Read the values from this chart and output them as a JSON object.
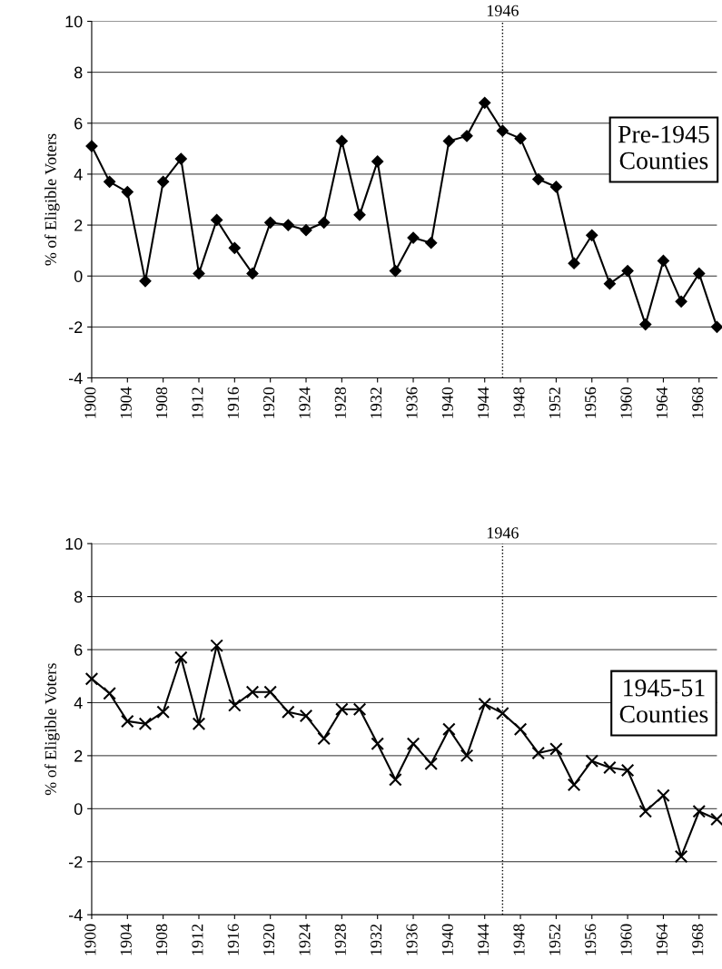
{
  "chart_data": [
    {
      "type": "line",
      "ylabel": "% of Eligible Voters",
      "x": [
        1900,
        1902,
        1904,
        1906,
        1908,
        1910,
        1912,
        1914,
        1916,
        1918,
        1920,
        1922,
        1924,
        1926,
        1928,
        1930,
        1932,
        1934,
        1936,
        1938,
        1940,
        1942,
        1944,
        1946,
        1948,
        1950,
        1952,
        1954,
        1956,
        1958,
        1960,
        1962,
        1964,
        1966,
        1968,
        1970
      ],
      "series": [
        {
          "color": "#000000",
          "values": [
            5.1,
            3.7,
            3.3,
            -0.2,
            3.7,
            4.6,
            0.1,
            2.2,
            1.1,
            0.1,
            2.1,
            2.0,
            1.8,
            2.1,
            5.3,
            2.4,
            4.5,
            0.2,
            1.5,
            1.3,
            5.3,
            5.5,
            6.8,
            5.7,
            5.4,
            3.8,
            3.5,
            0.5,
            1.6,
            -0.3,
            0.2,
            -1.9,
            0.6,
            -1.0,
            0.1,
            -2.0
          ]
        }
      ],
      "xlim": [
        1900,
        1970
      ],
      "xticks": [
        1900,
        1904,
        1908,
        1912,
        1916,
        1920,
        1924,
        1928,
        1932,
        1936,
        1940,
        1944,
        1948,
        1952,
        1956,
        1960,
        1964,
        1968
      ],
      "ylim": [
        -4,
        10
      ],
      "yticks": [
        -4,
        -2,
        0,
        2,
        4,
        6,
        8,
        10
      ],
      "grid": "y",
      "marker": "diamond",
      "line_style": "solid",
      "ref_lines": [
        {
          "axis": "x",
          "value": 1946,
          "label": "1946",
          "line_style": "dotted",
          "color": "#000000"
        }
      ],
      "annotations": [
        "Pre-1945\nCounties"
      ]
    },
    {
      "type": "line",
      "ylabel": "% of Eligible Voters",
      "x": [
        1900,
        1902,
        1904,
        1906,
        1908,
        1910,
        1912,
        1914,
        1916,
        1918,
        1920,
        1922,
        1924,
        1926,
        1928,
        1930,
        1932,
        1934,
        1936,
        1938,
        1940,
        1942,
        1944,
        1946,
        1948,
        1950,
        1952,
        1954,
        1956,
        1958,
        1960,
        1962,
        1964,
        1966,
        1968,
        1970
      ],
      "series": [
        {
          "color": "#000000",
          "values": [
            4.9,
            4.35,
            3.3,
            3.2,
            3.65,
            5.7,
            3.2,
            6.15,
            3.9,
            4.4,
            4.4,
            3.65,
            3.5,
            2.65,
            3.75,
            3.75,
            2.45,
            1.1,
            2.45,
            1.7,
            3.0,
            2.0,
            3.95,
            3.6,
            3.0,
            2.1,
            2.25,
            0.9,
            1.8,
            1.55,
            1.45,
            -0.1,
            0.5,
            -1.8,
            -0.1,
            -0.4
          ]
        }
      ],
      "xlim": [
        1900,
        1970
      ],
      "xticks": [
        1900,
        1904,
        1908,
        1912,
        1916,
        1920,
        1924,
        1928,
        1932,
        1936,
        1940,
        1944,
        1948,
        1952,
        1956,
        1960,
        1964,
        1968
      ],
      "ylim": [
        -4,
        10
      ],
      "yticks": [
        -4,
        -2,
        0,
        2,
        4,
        6,
        8,
        10
      ],
      "grid": "y",
      "marker": "cross",
      "line_style": "solid",
      "ref_lines": [
        {
          "axis": "x",
          "value": 1946,
          "label": "1946",
          "line_style": "dotted",
          "color": "#000000"
        }
      ],
      "annotations": [
        "1945-51\nCounties"
      ]
    }
  ]
}
